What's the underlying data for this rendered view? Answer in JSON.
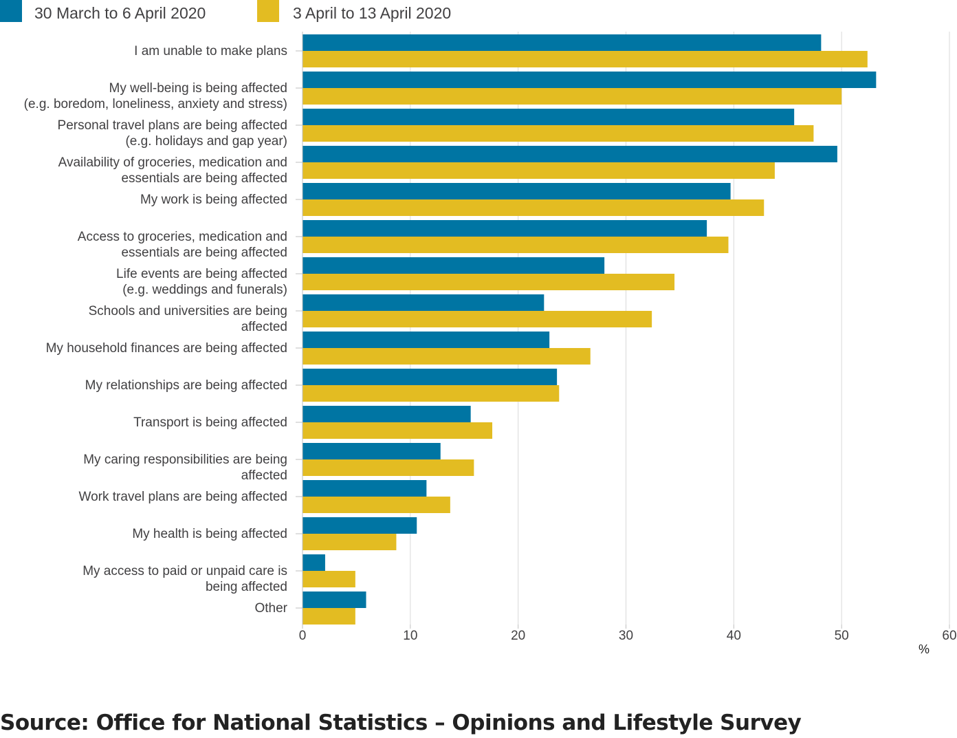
{
  "chart_data": {
    "type": "bar",
    "orientation": "horizontal",
    "categories": [
      [
        "I am unable to make plans"
      ],
      [
        "My well-being is being affected",
        "(e.g. boredom, loneliness, anxiety and stress)"
      ],
      [
        "Personal travel plans are being affected",
        "(e.g. holidays and gap year)"
      ],
      [
        "Availability of groceries, medication and",
        "essentials are being affected"
      ],
      [
        "My work is being affected"
      ],
      [
        "Access to groceries, medication and",
        "essentials are being affected"
      ],
      [
        "Life events are being affected",
        "(e.g. weddings and funerals)"
      ],
      [
        "Schools and universities are being",
        "affected"
      ],
      [
        "My household finances are being affected"
      ],
      [
        "My relationships are being affected"
      ],
      [
        "Transport is being affected"
      ],
      [
        "My caring responsibilities are being",
        "affected"
      ],
      [
        "Work travel plans are being affected"
      ],
      [
        "My health is being affected"
      ],
      [
        "My access to paid or unpaid care is",
        "being affected"
      ],
      [
        "Other"
      ]
    ],
    "series": [
      {
        "name": "30 March to 6 April 2020",
        "color": "#0075a3",
        "values": [
          48.1,
          53.2,
          45.6,
          49.6,
          39.7,
          37.5,
          28.0,
          22.4,
          22.9,
          23.6,
          15.6,
          12.8,
          11.5,
          10.6,
          2.1,
          5.9
        ]
      },
      {
        "name": "3 April to 13 April 2020",
        "color": "#e3bc22",
        "values": [
          52.4,
          50.0,
          47.4,
          43.8,
          42.8,
          39.5,
          34.5,
          32.4,
          26.7,
          23.8,
          17.6,
          15.9,
          13.7,
          8.7,
          4.9,
          4.9
        ]
      }
    ],
    "xticks": [
      "0",
      "10",
      "20",
      "30",
      "40",
      "50",
      "60"
    ],
    "xlim": [
      0,
      60
    ],
    "xlabel": "%",
    "grid": true,
    "legend_position": "top-left"
  },
  "source": "Source: Office for National Statistics – Opinions and Lifestyle Survey"
}
